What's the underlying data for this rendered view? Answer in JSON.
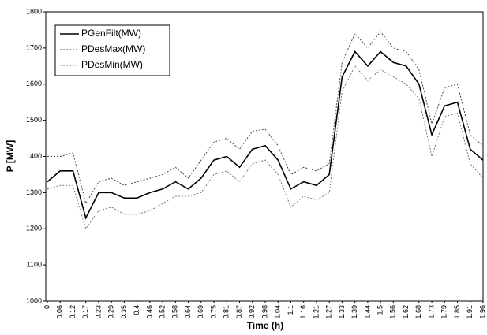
{
  "chart_data": {
    "type": "line",
    "xlabel": "Time (h)",
    "ylabel": "P [MW]",
    "categories": [
      "0",
      "0.06",
      "0.12",
      "0.17",
      "0.23",
      "0.29",
      "0.35",
      "0.4",
      "0.46",
      "0.52",
      "0.58",
      "0.64",
      "0.69",
      "0.75",
      "0.81",
      "0.87",
      "0.92",
      "0.98",
      "1.04",
      "1.1",
      "1.16",
      "1.21",
      "1.27",
      "1.33",
      "1.39",
      "1.44",
      "1.5",
      "1.56",
      "1.62",
      "1.68",
      "1.73",
      "1.79",
      "1.85",
      "1.91",
      "1.96"
    ],
    "series": [
      {
        "name": "PGenFilt(MW)",
        "color": "#000000",
        "style": "solid",
        "values": [
          1330,
          1360,
          1360,
          1230,
          1300,
          1300,
          1285,
          1285,
          1300,
          1310,
          1330,
          1310,
          1340,
          1390,
          1400,
          1370,
          1420,
          1430,
          1390,
          1310,
          1330,
          1320,
          1350,
          1620,
          1690,
          1650,
          1690,
          1660,
          1650,
          1600,
          1460,
          1540,
          1550,
          1420,
          1390
        ]
      },
      {
        "name": "PDesMax(MW)",
        "color": "#444444",
        "style": "dotted",
        "values": [
          1400,
          1400,
          1410,
          1270,
          1330,
          1340,
          1320,
          1330,
          1340,
          1350,
          1370,
          1340,
          1390,
          1440,
          1450,
          1420,
          1470,
          1475,
          1430,
          1350,
          1370,
          1360,
          1380,
          1660,
          1740,
          1700,
          1745,
          1700,
          1690,
          1640,
          1490,
          1590,
          1600,
          1460,
          1430
        ]
      },
      {
        "name": "PDesMin(MW)",
        "color": "#777777",
        "style": "dotted",
        "values": [
          1310,
          1320,
          1320,
          1200,
          1250,
          1260,
          1240,
          1240,
          1250,
          1270,
          1290,
          1290,
          1300,
          1350,
          1360,
          1330,
          1380,
          1390,
          1350,
          1260,
          1290,
          1280,
          1300,
          1580,
          1650,
          1610,
          1640,
          1620,
          1600,
          1560,
          1400,
          1510,
          1520,
          1380,
          1340
        ]
      }
    ],
    "ylim": [
      1000,
      1800
    ],
    "yticks": [
      1000,
      1100,
      1200,
      1300,
      1400,
      1500,
      1600,
      1700,
      1800
    ],
    "legend": "upper left"
  }
}
